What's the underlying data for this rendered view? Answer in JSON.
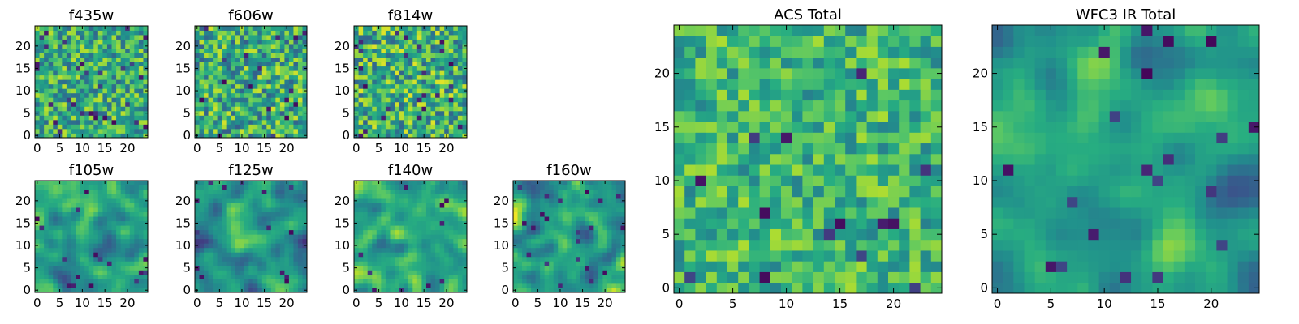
{
  "colors": {
    "colormap": "viridis",
    "axes_frame": "#000000",
    "background": "#ffffff"
  },
  "chart_data": [
    {
      "type": "heatmap",
      "title": "f435w",
      "grid": false,
      "xlim": [
        0,
        24
      ],
      "ylim": [
        0,
        24
      ],
      "xticks": [
        0,
        5,
        10,
        15,
        20
      ],
      "yticks": [
        0,
        5,
        10,
        15,
        20
      ],
      "texture": "fine-noise",
      "seed": 11,
      "mean": 0.62,
      "spread": 0.18
    },
    {
      "type": "heatmap",
      "title": "f606w",
      "grid": false,
      "xlim": [
        0,
        24
      ],
      "ylim": [
        0,
        24
      ],
      "xticks": [
        0,
        5,
        10,
        15,
        20
      ],
      "yticks": [
        0,
        5,
        10,
        15,
        20
      ],
      "texture": "fine-noise",
      "seed": 23,
      "mean": 0.62,
      "spread": 0.2
    },
    {
      "type": "heatmap",
      "title": "f814w",
      "grid": false,
      "xlim": [
        0,
        24
      ],
      "ylim": [
        0,
        24
      ],
      "xticks": [
        0,
        5,
        10,
        15,
        20
      ],
      "yticks": [
        0,
        5,
        10,
        15,
        20
      ],
      "texture": "fine-noise",
      "seed": 37,
      "mean": 0.64,
      "spread": 0.2
    },
    {
      "type": "heatmap",
      "title": "f105w",
      "grid": false,
      "xlim": [
        0,
        24
      ],
      "ylim": [
        0,
        24
      ],
      "xticks": [
        0,
        5,
        10,
        15,
        20
      ],
      "yticks": [
        0,
        5,
        10,
        15,
        20
      ],
      "texture": "smooth",
      "seed": 41,
      "mean": 0.58,
      "spread": 0.2
    },
    {
      "type": "heatmap",
      "title": "f125w",
      "grid": false,
      "xlim": [
        0,
        24
      ],
      "ylim": [
        0,
        24
      ],
      "xticks": [
        0,
        5,
        10,
        15,
        20
      ],
      "yticks": [
        0,
        5,
        10,
        15,
        20
      ],
      "texture": "smooth",
      "seed": 53,
      "mean": 0.55,
      "spread": 0.22
    },
    {
      "type": "heatmap",
      "title": "f140w",
      "grid": false,
      "xlim": [
        0,
        24
      ],
      "ylim": [
        0,
        24
      ],
      "xticks": [
        0,
        5,
        10,
        15,
        20
      ],
      "yticks": [
        0,
        5,
        10,
        15,
        20
      ],
      "texture": "smooth",
      "seed": 67,
      "mean": 0.62,
      "spread": 0.2
    },
    {
      "type": "heatmap",
      "title": "f160w",
      "grid": false,
      "xlim": [
        0,
        24
      ],
      "ylim": [
        0,
        24
      ],
      "xticks": [
        0,
        5,
        10,
        15,
        20
      ],
      "yticks": [
        0,
        5,
        10,
        15,
        20
      ],
      "texture": "smooth",
      "seed": 79,
      "mean": 0.55,
      "spread": 0.22
    },
    {
      "type": "heatmap",
      "title": "ACS Total",
      "grid": false,
      "xlim": [
        0,
        24
      ],
      "ylim": [
        0,
        24
      ],
      "xticks": [
        0,
        5,
        10,
        15,
        20
      ],
      "yticks": [
        0,
        5,
        10,
        15,
        20
      ],
      "texture": "fine-noise",
      "seed": 97,
      "mean": 0.66,
      "spread": 0.14
    },
    {
      "type": "heatmap",
      "title": "WFC3 IR Total",
      "grid": false,
      "xlim": [
        0,
        24
      ],
      "ylim": [
        0,
        24
      ],
      "xticks": [
        0,
        5,
        10,
        15,
        20
      ],
      "yticks": [
        0,
        5,
        10,
        15,
        20
      ],
      "texture": "smooth",
      "seed": 101,
      "mean": 0.55,
      "spread": 0.16
    }
  ]
}
